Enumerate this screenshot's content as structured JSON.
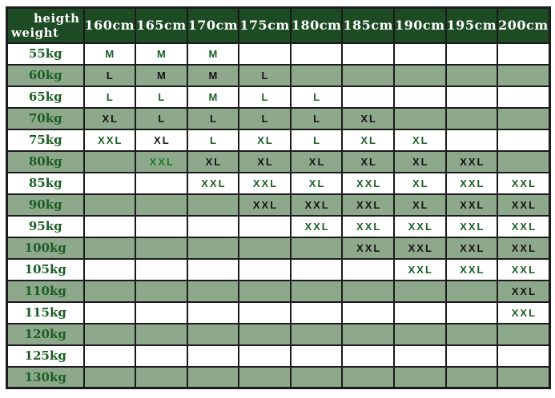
{
  "colors": {
    "header_bg": "#1c4b24",
    "header_text": "#ffffff",
    "row_white_bg": "#ffffff",
    "row_sage_bg": "#8ea88c",
    "border": "#1b1b1b",
    "text_green": "#1b5e24",
    "text_black": "#151515",
    "highlight_green": "#1e7a28"
  },
  "chart_data": {
    "type": "table",
    "title": "size chart (height vs weight)",
    "corner": {
      "line1": "heigth",
      "line2": "weight"
    },
    "columns": [
      "160cm",
      "165cm",
      "170cm",
      "175cm",
      "180cm",
      "185cm",
      "190cm",
      "195cm",
      "200cm"
    ],
    "rows": [
      {
        "label": "55kg",
        "cells": [
          "M",
          "M",
          "M",
          "",
          "",
          "",
          "",
          "",
          ""
        ]
      },
      {
        "label": "60kg",
        "cells": [
          "L",
          "M",
          "M",
          "L",
          "",
          "",
          "",
          "",
          ""
        ]
      },
      {
        "label": "65kg",
        "cells": [
          "L",
          "L",
          "M",
          "L",
          "L",
          "",
          "",
          "",
          ""
        ]
      },
      {
        "label": "70kg",
        "cells": [
          "XL",
          "L",
          "L",
          "L",
          "L",
          "XL",
          "",
          "",
          ""
        ]
      },
      {
        "label": "75kg",
        "cells": [
          "XXL",
          "XL",
          "L",
          "XL",
          "L",
          "XL",
          "XL",
          "",
          ""
        ]
      },
      {
        "label": "80kg",
        "cells": [
          "",
          "XXL",
          "XL",
          "XL",
          "XL",
          "XL",
          "XL",
          "XXL",
          ""
        ]
      },
      {
        "label": "85kg",
        "cells": [
          "",
          "",
          "XXL",
          "XXL",
          "XL",
          "XXL",
          "XL",
          "XXL",
          "XXL"
        ]
      },
      {
        "label": "90kg",
        "cells": [
          "",
          "",
          "",
          "XXL",
          "XXL",
          "XXL",
          "XL",
          "XXL",
          "XXL"
        ]
      },
      {
        "label": "95kg",
        "cells": [
          "",
          "",
          "",
          "",
          "XXL",
          "XXL",
          "XXL",
          "XXL",
          "XXL"
        ]
      },
      {
        "label": "100kg",
        "cells": [
          "",
          "",
          "",
          "",
          "",
          "XXL",
          "XXL",
          "XXL",
          "XXL"
        ]
      },
      {
        "label": "105kg",
        "cells": [
          "",
          "",
          "",
          "",
          "",
          "",
          "XXL",
          "XXL",
          "XXL"
        ]
      },
      {
        "label": "110kg",
        "cells": [
          "",
          "",
          "",
          "",
          "",
          "",
          "",
          "",
          "XXL"
        ]
      },
      {
        "label": "115kg",
        "cells": [
          "",
          "",
          "",
          "",
          "",
          "",
          "",
          "",
          "XXL"
        ]
      },
      {
        "label": "120kg",
        "cells": [
          "",
          "",
          "",
          "",
          "",
          "",
          "",
          "",
          ""
        ]
      },
      {
        "label": "125kg",
        "cells": [
          "",
          "",
          "",
          "",
          "",
          "",
          "",
          "",
          ""
        ]
      },
      {
        "label": "130kg",
        "cells": [
          "",
          "",
          "",
          "",
          "",
          "",
          "",
          "",
          ""
        ]
      }
    ],
    "row_style_note": "rows alternate white then sage starting with 55kg white; text on white rows is dark green, text on sage rows is black",
    "text_color_exceptions": [
      {
        "row_label": "75kg",
        "column": "165cm",
        "color": "black"
      },
      {
        "row_label": "80kg",
        "column": "165cm",
        "color": "green"
      }
    ]
  }
}
